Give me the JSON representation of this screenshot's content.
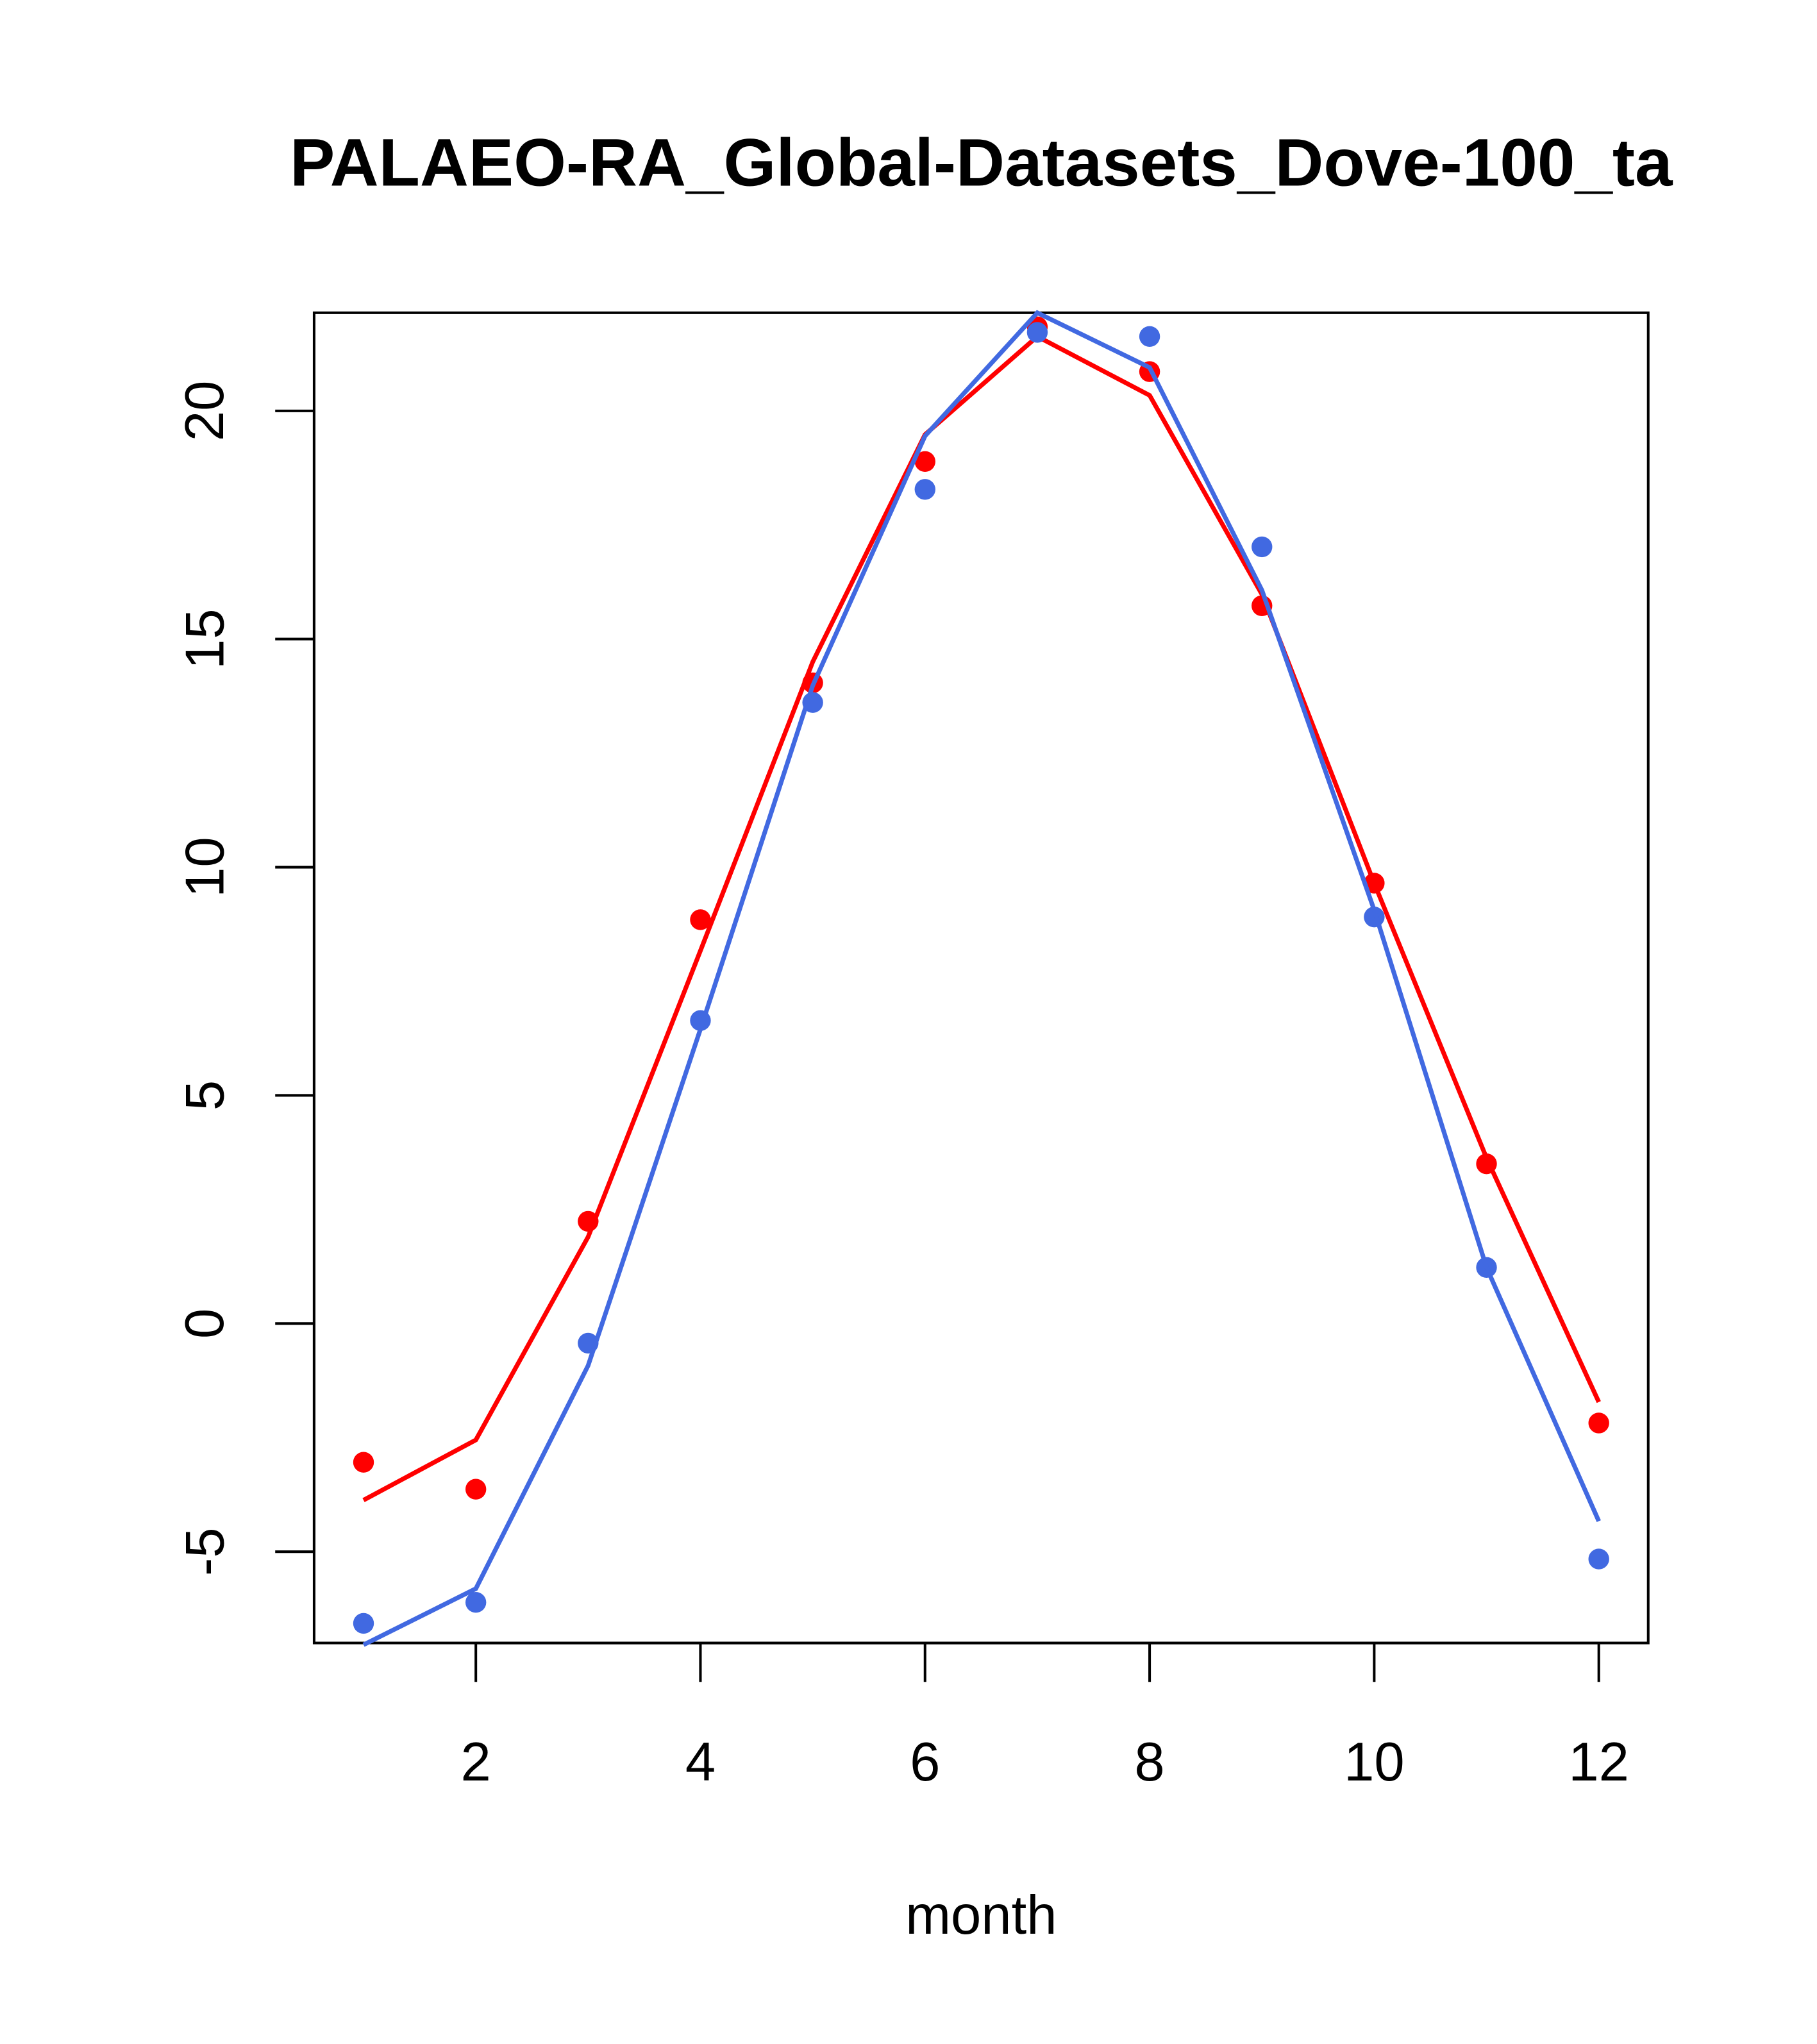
{
  "chart_data": {
    "type": "line",
    "title": "PALAEO-RA_Global-Datasets_Dove-100_ta",
    "xlabel": "month",
    "ylabel": "",
    "xlim": [
      0.56,
      12.44
    ],
    "ylim": [
      -7.0,
      22.15
    ],
    "x_ticks": [
      2,
      4,
      6,
      8,
      10,
      12
    ],
    "x_tick_labels": [
      "2",
      "4",
      "6",
      "8",
      "10",
      "12"
    ],
    "y_ticks": [
      -5,
      0,
      5,
      10,
      15,
      20
    ],
    "y_tick_labels": [
      "-5",
      "0",
      "5",
      "10",
      "15",
      "20"
    ],
    "grid": false,
    "x": [
      1,
      2,
      3,
      4,
      5,
      6,
      7,
      8,
      9,
      10,
      11,
      12
    ],
    "series": [
      {
        "name": "red points",
        "kind": "points",
        "color": "#ff0000",
        "values": [
          -3.04,
          -3.63,
          2.24,
          8.85,
          14.04,
          18.89,
          21.84,
          20.86,
          15.73,
          9.65,
          3.5,
          -2.18
        ]
      },
      {
        "name": "red line",
        "kind": "line",
        "color": "#ff0000",
        "values": [
          -3.87,
          -2.55,
          1.9,
          8.17,
          14.5,
          19.48,
          21.63,
          20.34,
          15.98,
          9.65,
          3.63,
          -1.72
        ]
      },
      {
        "name": "blue points",
        "kind": "points",
        "color": "#4169e1",
        "values": [
          -6.57,
          -6.11,
          -0.43,
          6.64,
          13.61,
          18.28,
          21.72,
          21.63,
          17.02,
          8.91,
          1.23,
          -5.16
        ]
      },
      {
        "name": "blue line",
        "kind": "line",
        "color": "#4169e1",
        "values": [
          -7.04,
          -5.81,
          -0.92,
          6.45,
          13.98,
          19.45,
          22.15,
          20.95,
          16.07,
          9.06,
          1.23,
          -4.33
        ]
      }
    ]
  }
}
